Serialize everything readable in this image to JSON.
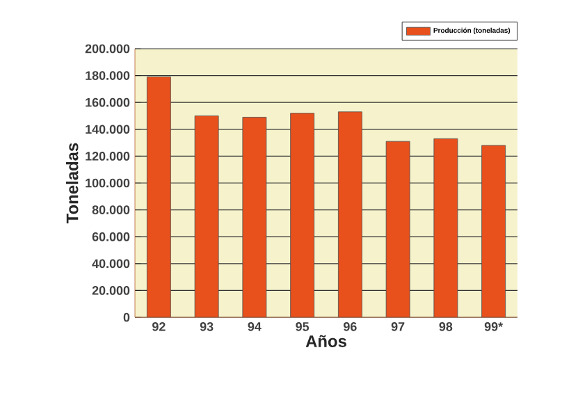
{
  "chart_data": {
    "type": "bar",
    "xlabel": "Años",
    "ylabel": "Toneladas",
    "categories": [
      "92",
      "93",
      "94",
      "95",
      "96",
      "97",
      "98",
      "99*"
    ],
    "series": [
      {
        "name": "Producción (toneladas)",
        "color": "#e8501c",
        "values": [
          179000,
          150000,
          149000,
          152000,
          153000,
          131000,
          133000,
          128000
        ]
      }
    ],
    "ylim": [
      0,
      200000
    ],
    "yticks": [
      {
        "value": 0,
        "label": "0"
      },
      {
        "value": 20000,
        "label": "20.000"
      },
      {
        "value": 40000,
        "label": "40.000"
      },
      {
        "value": 60000,
        "label": "60.000"
      },
      {
        "value": 80000,
        "label": "80.000"
      },
      {
        "value": 100000,
        "label": "100.000"
      },
      {
        "value": 120000,
        "label": "120.000"
      },
      {
        "value": 140000,
        "label": "140.000"
      },
      {
        "value": 160000,
        "label": "160.000"
      },
      {
        "value": 180000,
        "label": "180.000"
      },
      {
        "value": 200000,
        "label": "200.000"
      }
    ],
    "grid": "y",
    "legend": "top right"
  }
}
